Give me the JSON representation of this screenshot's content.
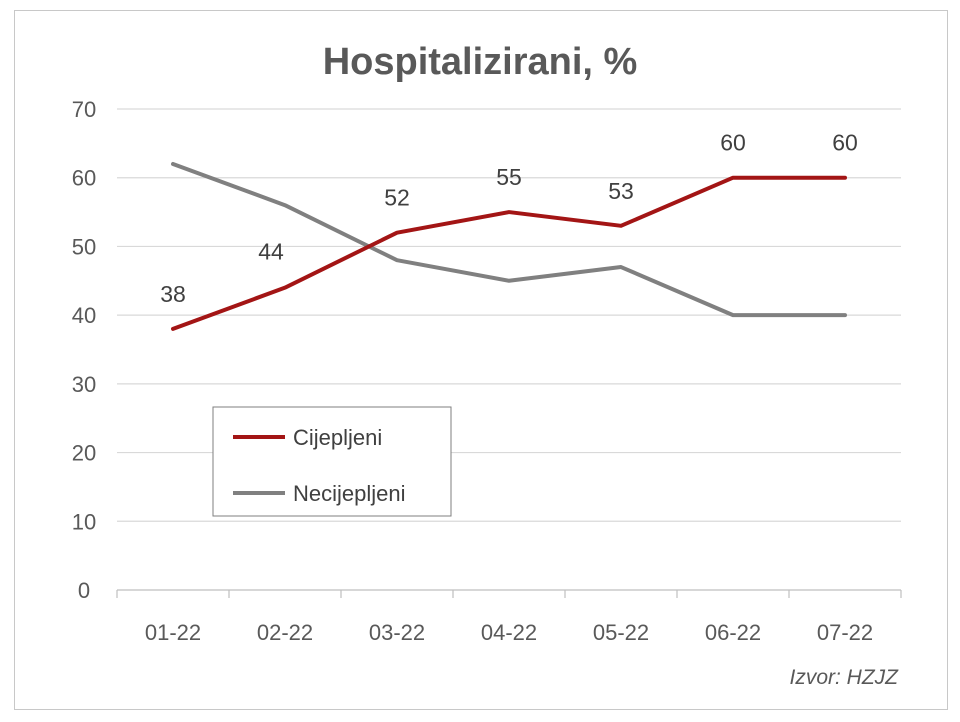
{
  "chart_data": {
    "type": "line",
    "title": "Hospitalizirani, %",
    "categories": [
      "01-22",
      "02-22",
      "03-22",
      "04-22",
      "05-22",
      "06-22",
      "07-22"
    ],
    "ylim": [
      0,
      70
    ],
    "yticks": [
      0,
      10,
      20,
      30,
      40,
      50,
      60,
      70
    ],
    "grid": true,
    "legend_position": "bottom-left",
    "series": [
      {
        "name": "Cijepljeni",
        "color": "#a31515",
        "values": [
          38,
          44,
          52,
          55,
          53,
          60,
          60
        ],
        "data_labels": [
          "38",
          "44",
          "52",
          "55",
          "53",
          "60",
          "60"
        ]
      },
      {
        "name": "Necijepljeni",
        "color": "#808080",
        "values": [
          62,
          56,
          48,
          45,
          47,
          40,
          40
        ]
      }
    ],
    "source": "Izvor: HZJZ"
  }
}
